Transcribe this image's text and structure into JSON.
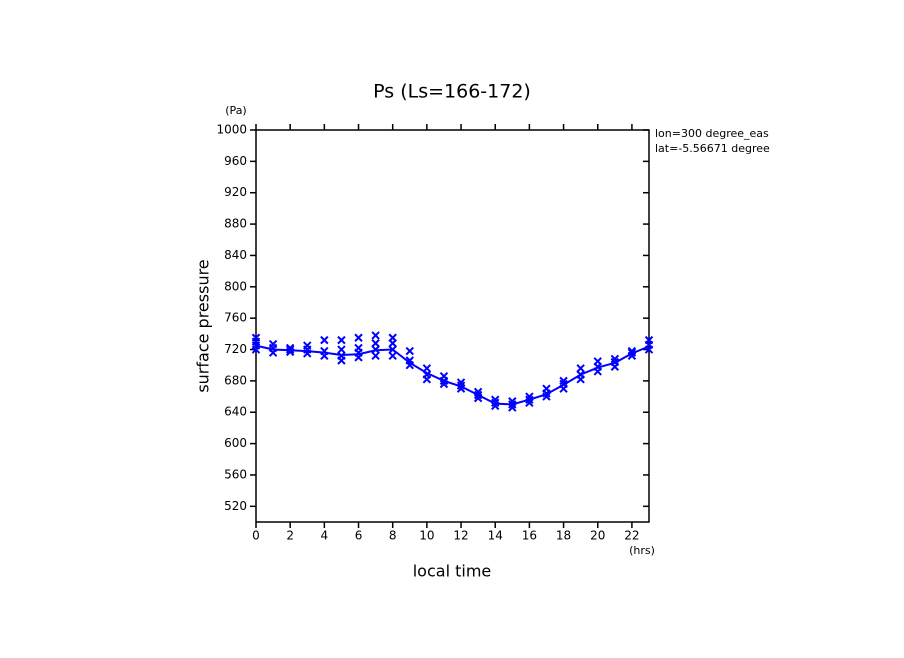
{
  "chart_data": {
    "type": "line",
    "title": "Ps (Ls=166-172)",
    "xlabel": "local time",
    "ylabel": "surface pressure",
    "annotations": [
      "(Pa)",
      "(hrs)",
      "lon=300 degree_eas",
      "lat=-5.56671 degree"
    ],
    "xlim": [
      0,
      23
    ],
    "ylim": [
      500,
      1000
    ],
    "xticks": [
      0,
      2,
      4,
      6,
      8,
      10,
      12,
      14,
      16,
      18,
      20,
      22
    ],
    "yticks": [
      520,
      560,
      600,
      640,
      680,
      720,
      760,
      800,
      840,
      880,
      920,
      960,
      1000
    ],
    "series": [
      {
        "color": "#0000ff",
        "x": [
          0,
          1,
          2,
          3,
          4,
          5,
          6,
          7,
          8,
          9,
          10,
          11,
          12,
          13,
          14,
          15,
          16,
          17,
          18,
          19,
          20,
          21,
          22,
          23
        ],
        "values": [
          725,
          720,
          719,
          718,
          716,
          713,
          714,
          719,
          720,
          703,
          690,
          680,
          673,
          662,
          651,
          650,
          656,
          663,
          675,
          688,
          697,
          703,
          715,
          724
        ]
      },
      {
        "color": "#0000ff",
        "marker": "x",
        "x": [
          0,
          0,
          0,
          0,
          1,
          1,
          1,
          2,
          2,
          2,
          3,
          3,
          3,
          4,
          4,
          4,
          5,
          5,
          5,
          5,
          6,
          6,
          6,
          6,
          7,
          7,
          7,
          7,
          8,
          8,
          8,
          8,
          9,
          9,
          9,
          10,
          10,
          10,
          11,
          11,
          11,
          12,
          12,
          12,
          13,
          13,
          13,
          14,
          14,
          14,
          15,
          15,
          15,
          16,
          16,
          16,
          17,
          17,
          17,
          18,
          18,
          18,
          19,
          19,
          19,
          20,
          20,
          20,
          21,
          21,
          21,
          22,
          22,
          22,
          23,
          23,
          23
        ],
        "values": [
          720,
          725,
          730,
          735,
          716,
          722,
          727,
          717,
          720,
          722,
          715,
          720,
          725,
          712,
          718,
          732,
          706,
          712,
          720,
          732,
          710,
          716,
          722,
          735,
          712,
          720,
          728,
          738,
          712,
          720,
          728,
          735,
          700,
          706,
          718,
          682,
          688,
          696,
          676,
          680,
          686,
          670,
          674,
          678,
          658,
          662,
          666,
          648,
          652,
          656,
          646,
          650,
          654,
          652,
          656,
          660,
          660,
          664,
          670,
          670,
          676,
          680,
          682,
          688,
          696,
          692,
          698,
          705,
          698,
          704,
          708,
          712,
          716,
          718,
          720,
          726,
          732
        ]
      }
    ]
  }
}
